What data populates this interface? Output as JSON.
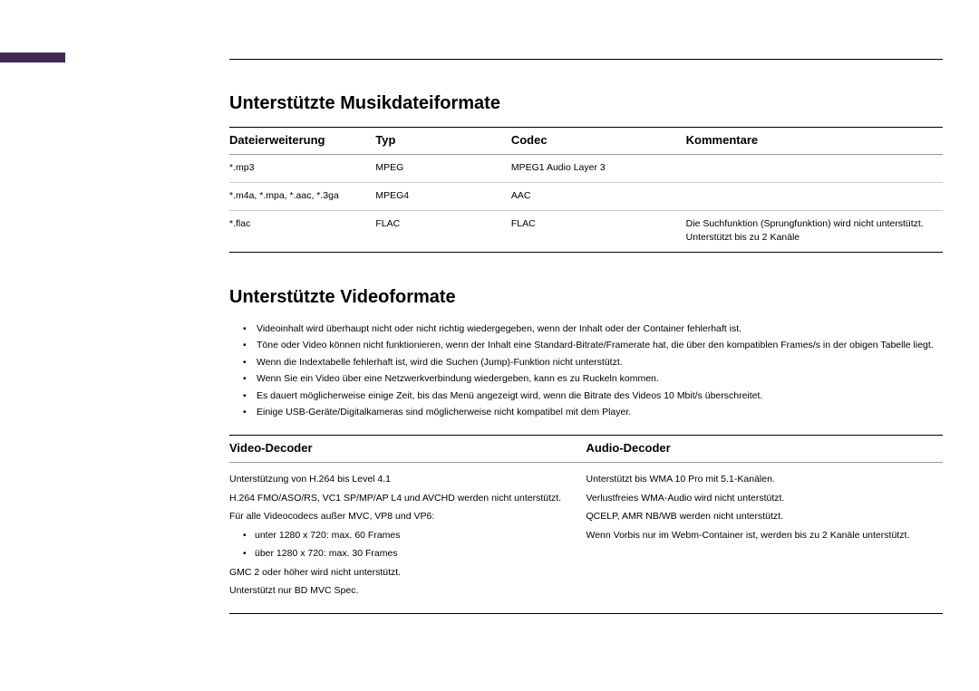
{
  "music": {
    "heading": "Unterstützte Musikdateiformate",
    "cols": {
      "ext": "Dateierweiterung",
      "typ": "Typ",
      "codec": "Codec",
      "comm": "Kommentare"
    },
    "rows": [
      {
        "ext": "*.mp3",
        "typ": "MPEG",
        "codec": "MPEG1 Audio Layer 3",
        "comm": ""
      },
      {
        "ext": "*.m4a, *.mpa, *.aac, *.3ga",
        "typ": "MPEG4",
        "codec": "AAC",
        "comm": ""
      },
      {
        "ext": "*.flac",
        "typ": "FLAC",
        "codec": "FLAC",
        "comm": "Die Suchfunktion (Sprungfunktion) wird nicht unterstützt.\nUnterstützt bis zu 2 Kanäle"
      }
    ]
  },
  "video": {
    "heading": "Unterstützte Videoformate",
    "notes": [
      "Videoinhalt wird überhaupt nicht oder nicht richtig wiedergegeben, wenn der Inhalt oder der Container fehlerhaft ist.",
      "Töne oder Video können nicht funktionieren, wenn der Inhalt eine Standard-Bitrate/Framerate hat, die über den kompatiblen Frames/s in der obigen Tabelle liegt.",
      "Wenn die Indextabelle fehlerhaft ist, wird die Suchen (Jump)-Funktion nicht unterstützt.",
      "Wenn Sie ein Video über eine Netzwerkverbindung wiedergeben, kann es zu Ruckeln kommen.",
      "Es dauert möglicherweise einige Zeit, bis das Menü angezeigt wird, wenn die Bitrate des Videos 10 Mbit/s überschreitet.",
      "Einige USB-Geräte/Digitalkameras sind möglicherweise nicht kompatibel mit dem Player."
    ],
    "decoders": {
      "vcol": "Video-Decoder",
      "acol": "Audio-Decoder",
      "v": {
        "l1": "Unterstützung von H.264 bis Level 4.1",
        "l2": "H.264 FMO/ASO/RS, VC1 SP/MP/AP L4 und AVCHD werden nicht unterstützt.",
        "l3": "Für alle Videocodecs außer MVC, VP8 und VP6:",
        "s1": "unter 1280 x 720: max. 60 Frames",
        "s2": "über 1280 x 720: max. 30 Frames",
        "l4": "GMC 2 oder höher wird nicht unterstützt.",
        "l5": "Unterstützt nur BD MVC Spec."
      },
      "a": {
        "l1": "Unterstützt bis WMA 10 Pro mit 5.1-Kanälen.",
        "l2": "Verlustfreies WMA-Audio wird nicht unterstützt.",
        "l3": "QCELP, AMR NB/WB werden nicht unterstützt.",
        "l4": "Wenn Vorbis nur im Webm-Container ist, werden bis zu 2 Kanäle unterstützt."
      }
    }
  }
}
